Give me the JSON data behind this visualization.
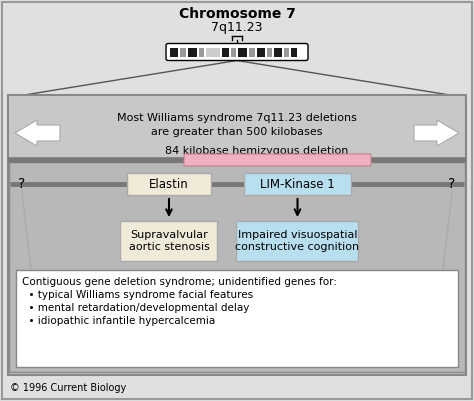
{
  "title": "Chromosome 7",
  "subtitle": "7q11.23",
  "bg_outer": "#c8c8c8",
  "bg_inner": "#b8b8b8",
  "white_bg": "#ffffff",
  "fig_bg": "#e0e0e0",
  "arrow_text": "Most Williams syndrome 7q11.23 deletions\nare greater than 500 kilobases",
  "deletion_label": "84 kilobase hemizygous deletion",
  "elastin_label": "Elastin",
  "limkinase_label": "LIM-Kinase 1",
  "elastin_effect": "Supravalvular\naortic stenosis",
  "limkinase_effect": "Impaired visuospatial\nconstructive cognition",
  "contiguous_line1": "Contiguous gene deletion syndrome; unidentified genes for:",
  "contiguous_line2": "  • typical Williams syndrome facial features",
  "contiguous_line3": "  • mental retardation/developmental delay",
  "contiguous_line4": "  • idiopathic infantile hypercalcemia",
  "copyright": "© 1996 Current Biology",
  "elastin_color": "#f0ead8",
  "limkinase_color": "#b8dff0",
  "deletion_bar_color": "#f0b0c0",
  "border_color": "#888888",
  "dark_line_color": "#888888",
  "chrom_dark": "#1a1a1a",
  "chrom_mid": "#999999",
  "chrom_light": "#cccccc"
}
